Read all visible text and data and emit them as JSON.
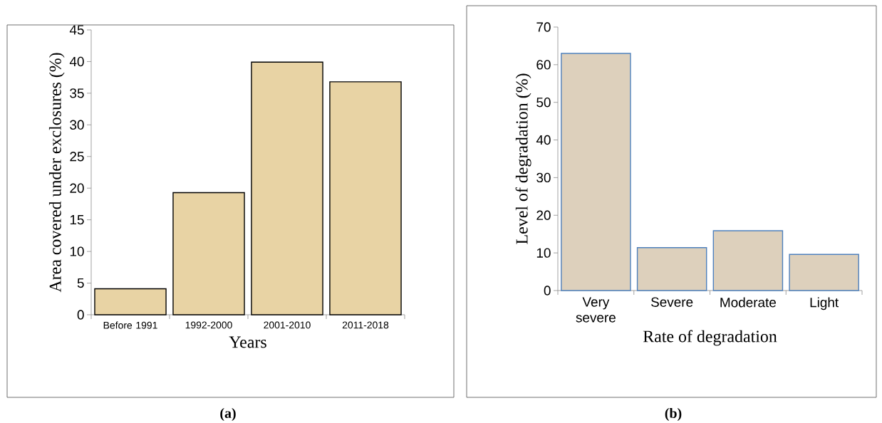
{
  "chart_data": [
    {
      "type": "bar",
      "categories": [
        "Before 1991",
        "1992-2000",
        "2001-2010",
        "2011-2018"
      ],
      "values": [
        4.1,
        19.3,
        39.9,
        36.8
      ],
      "color": "#e8d3a4",
      "ylim": [
        0,
        45
      ],
      "yticks": [
        0,
        5,
        10,
        15,
        20,
        25,
        30,
        35,
        40,
        45
      ],
      "xlabel": "Years",
      "ylabel": "Area covered under exclosures (%)",
      "annotations": [
        "(a)"
      ]
    },
    {
      "type": "bar",
      "categories": [
        "Very severe",
        "Severe",
        "Moderate",
        "Light"
      ],
      "values": [
        63.0,
        11.4,
        15.9,
        9.6
      ],
      "color": "#ddd0bc",
      "ylim": [
        0,
        70
      ],
      "yticks": [
        0,
        10,
        20,
        30,
        40,
        50,
        60,
        70
      ],
      "xlabel": "Rate of degradation",
      "ylabel": "Level of degradation (%)",
      "annotations": [
        "(b)"
      ]
    }
  ]
}
